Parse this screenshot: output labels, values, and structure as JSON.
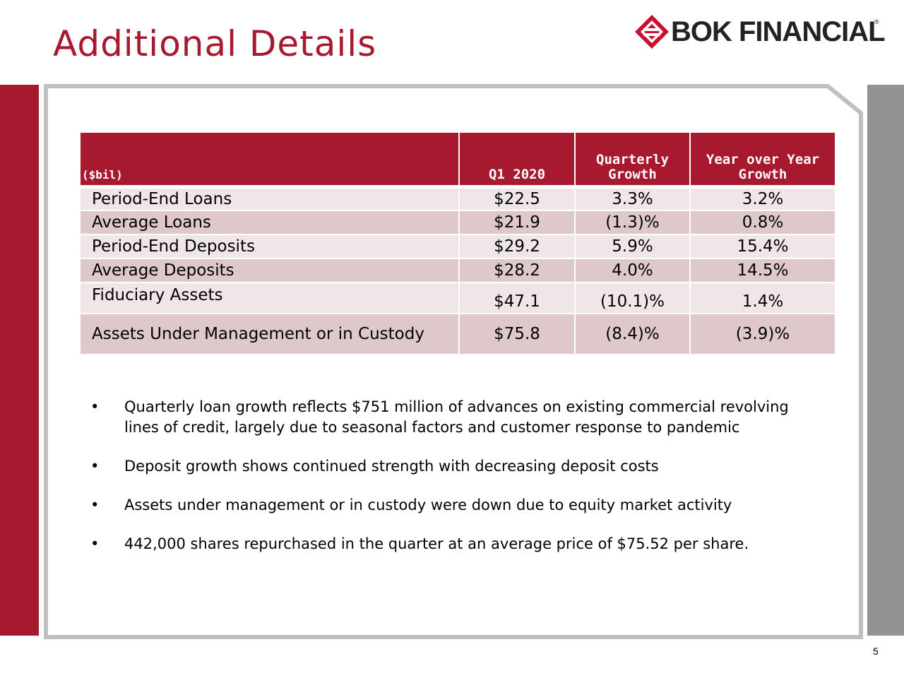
{
  "slide": {
    "title": "Additional Details",
    "page_number": "5",
    "accent_color": "#a6192e",
    "gray_color": "#939393"
  },
  "logo": {
    "text": "BOK FINANCIAL",
    "registered_mark": "®",
    "icon": "bok-diamond-logo-icon"
  },
  "table": {
    "headers": [
      {
        "line1": "",
        "line2": "($bil)"
      },
      {
        "line1": "",
        "line2": "Q1 2020"
      },
      {
        "line1": "Quarterly",
        "line2": "Growth"
      },
      {
        "line1": "Year over Year",
        "line2": "Growth"
      }
    ],
    "rows": [
      {
        "label": "Period-End Loans",
        "q1_2020": "$22.5",
        "quarterly_growth": "3.3%",
        "yoy_growth": "3.2%"
      },
      {
        "label": "Average Loans",
        "q1_2020": "$21.9",
        "quarterly_growth": "(1.3)%",
        "yoy_growth": "0.8%"
      },
      {
        "label": "Period-End Deposits",
        "q1_2020": "$29.2",
        "quarterly_growth": "5.9%",
        "yoy_growth": "15.4%"
      },
      {
        "label": "Average Deposits",
        "q1_2020": "$28.2",
        "quarterly_growth": "4.0%",
        "yoy_growth": "14.5%"
      },
      {
        "label": "Fiduciary Assets",
        "q1_2020": "$47.1",
        "quarterly_growth": "(10.1)%",
        "yoy_growth": "1.4%"
      },
      {
        "label": "Assets Under Management or in Custody",
        "q1_2020": "$75.8",
        "quarterly_growth": "(8.4)%",
        "yoy_growth": "(3.9)%"
      }
    ]
  },
  "bullets": [
    {
      "dot": "•",
      "text": "Quarterly loan growth reflects $751 million of advances on existing commercial revolving lines of credit, largely due to seasonal factors and customer response to pandemic"
    },
    {
      "dot": "•",
      "text": "Deposit growth shows continued strength with decreasing deposit costs"
    },
    {
      "dot": "•",
      "text": "Assets under management or in custody were down due to equity market activity"
    },
    {
      "dot": "•",
      "text": "442,000 shares repurchased in the quarter at an average price of $75.52 per share."
    }
  ]
}
